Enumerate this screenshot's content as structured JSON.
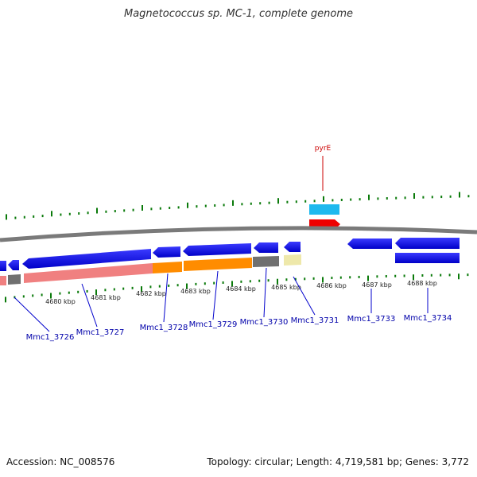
{
  "title": "Magnetococcus sp. MC-1, complete genome",
  "pyrE_label": "pyrE",
  "kbp_labels": [
    "4680 kbp",
    "4681 kbp",
    "4682 kbp",
    "4683 kbp",
    "4684 kbp",
    "4685 kbp",
    "4686 kbp",
    "4687 kbp",
    "4688 kbp"
  ],
  "gene_labels": [
    "Mmc1_3726",
    "Mmc1_3727",
    "Mmc1_3728",
    "Mmc1_3729",
    "Mmc1_3730",
    "Mmc1_3731",
    "Mmc1_3733",
    "Mmc1_3734"
  ],
  "footer": {
    "accession": "Accession: NC_008576",
    "stats": "Topology: circular; Length: 4,719,581 bp; Genes: 3,772"
  },
  "colors": {
    "cds": "#0000dd",
    "backbone": "#7a7a7a",
    "tick": "#0a7a0a",
    "label": "#0000aa",
    "pyrE": "#cc0000",
    "cog_pink": "#f08080",
    "cog_orange": "#ff8c00",
    "cog_grey": "#707070",
    "cog_khaki": "#eee8aa",
    "cog_cyan": "#1eb9ee",
    "cog_red": "#ee0000"
  }
}
